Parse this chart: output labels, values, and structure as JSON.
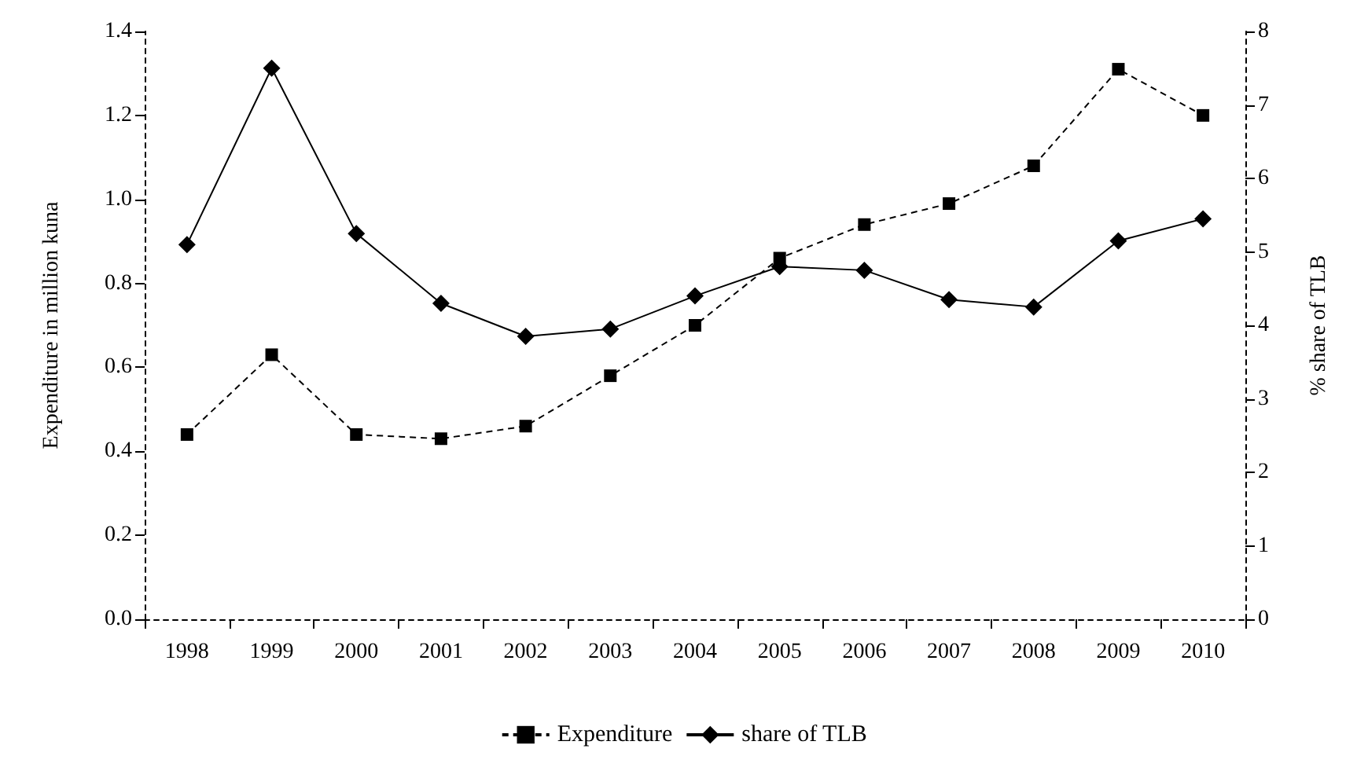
{
  "chart_data": {
    "type": "line",
    "xlabel": null,
    "ylabel": "Expenditure in million kuna",
    "y2label": "% share of TLB",
    "categories": [
      "1998",
      "1999",
      "2000",
      "2001",
      "2002",
      "2003",
      "2004",
      "2005",
      "2006",
      "2007",
      "2008",
      "2009",
      "2010"
    ],
    "series": [
      {
        "name": "Expenditure",
        "color": "#000000",
        "marker": "square",
        "line_style": "dashed",
        "values": [
          0.44,
          0.63,
          0.44,
          0.43,
          0.46,
          0.58,
          0.7,
          0.86,
          0.94,
          0.99,
          1.08,
          1.31,
          1.2
        ]
      },
      {
        "name": "share of TLB",
        "color": "#000000",
        "marker": "diamond",
        "line_style": "solid",
        "axis": "y2",
        "values": [
          5.1,
          7.5,
          5.25,
          4.3,
          3.85,
          3.95,
          4.4,
          4.8,
          4.75,
          4.35,
          4.25,
          5.15,
          5.45
        ]
      }
    ],
    "ylim": [
      0,
      1.4
    ],
    "yticks": [
      {
        "value": 0,
        "label": "0.0"
      },
      {
        "value": 0.2,
        "label": "0.2"
      },
      {
        "value": 0.4,
        "label": "0.4"
      },
      {
        "value": 0.6,
        "label": "0.6"
      },
      {
        "value": 0.8,
        "label": "0.8"
      },
      {
        "value": 1,
        "label": "1.0"
      },
      {
        "value": 1.2,
        "label": "1.2"
      },
      {
        "value": 1.4,
        "label": "1.4"
      }
    ],
    "y2lim": [
      0,
      8
    ],
    "y2ticks": [
      0,
      1,
      2,
      3,
      4,
      5,
      6,
      7,
      8
    ],
    "grid": false,
    "legend": "bottom"
  }
}
